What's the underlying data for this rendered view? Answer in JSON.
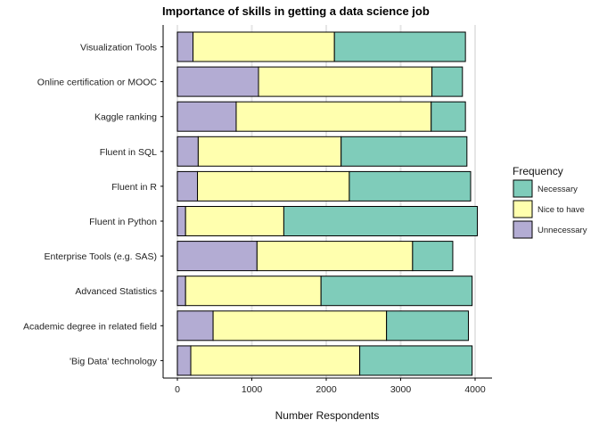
{
  "chart_data": {
    "type": "bar",
    "orientation": "horizontal",
    "stacked": true,
    "title": "Importance of skills in getting a data science job",
    "xlabel": "Number Respondents",
    "ylabel": "",
    "xlim": [
      0,
      4150
    ],
    "xticks": [
      0,
      1000,
      2000,
      3000,
      4000
    ],
    "xtick_labels": [
      "0",
      "1000",
      "2000",
      "3000",
      "4000"
    ],
    "grid": "vertical major",
    "legend_position": "right",
    "legend_title": "Frequency",
    "categories": [
      "Visualization Tools",
      "Online certification or MOOC",
      "Kaggle ranking",
      "Fluent in SQL",
      "Fluent in R",
      "Fluent in Python",
      "Enterprise Tools (e.g. SAS)",
      "Advanced Statistics",
      "Academic degree in related field",
      "'Big Data' technology"
    ],
    "series": [
      {
        "name": "Unnecessary",
        "color": "#b3acd3",
        "values": [
          210,
          1090,
          790,
          280,
          270,
          110,
          1070,
          110,
          480,
          180
        ]
      },
      {
        "name": "Nice to have",
        "color": "#ffffae",
        "values": [
          1900,
          2330,
          2620,
          1920,
          2040,
          1320,
          2090,
          1820,
          2330,
          2270
        ]
      },
      {
        "name": "Necessary",
        "color": "#7fccba",
        "values": [
          1760,
          410,
          460,
          1690,
          1630,
          2600,
          540,
          2030,
          1100,
          1510
        ]
      }
    ],
    "legend_order": [
      "Necessary",
      "Nice to have",
      "Unnecessary"
    ]
  }
}
